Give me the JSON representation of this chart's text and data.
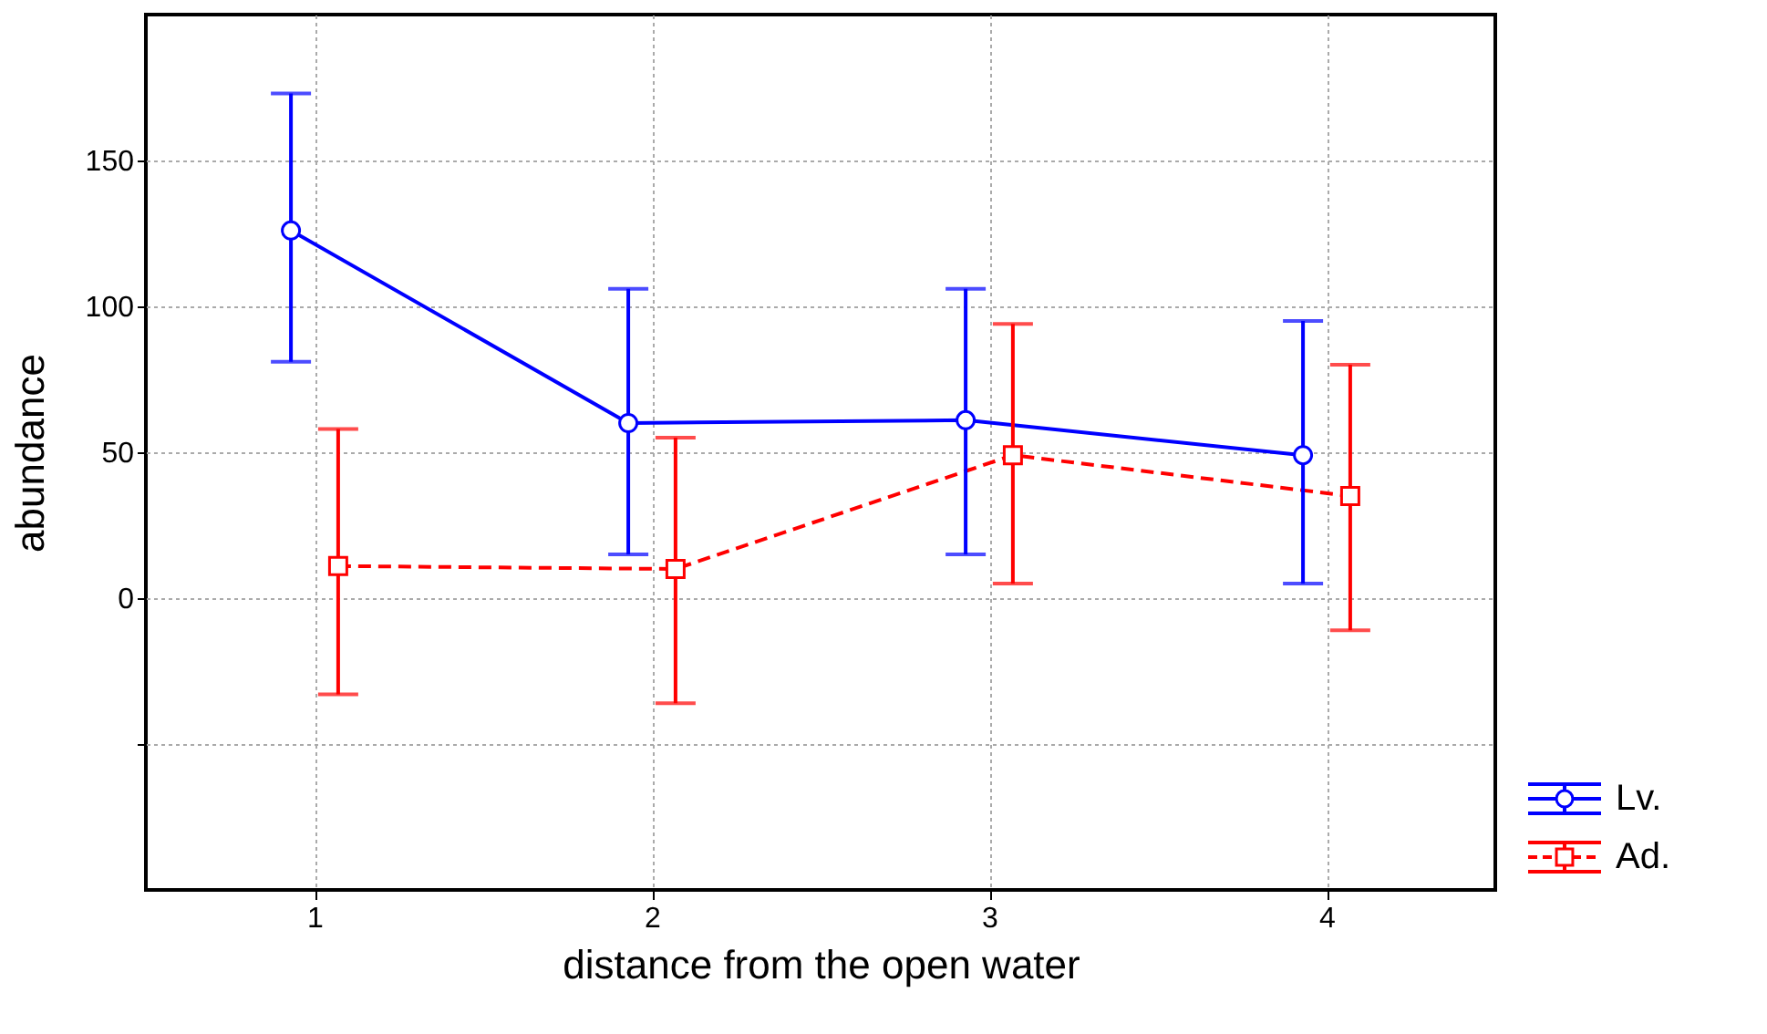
{
  "chart_data": {
    "type": "line",
    "xlabel": "distance from the open water",
    "ylabel": "abundance",
    "xlim": [
      0.5,
      4.5
    ],
    "xticks": [
      1,
      2,
      3,
      4
    ],
    "ylim": [
      -100,
      200
    ],
    "yticks": [
      {
        "value": -50,
        "label": null
      },
      0,
      50,
      100,
      150
    ],
    "grid": true,
    "legend": "bottom right",
    "series": [
      {
        "name": "Lv.",
        "color": "#0000ff",
        "marker": "circle",
        "line_style": "solid",
        "x": [
          0.93,
          1.93,
          2.93,
          3.93
        ],
        "values": [
          126,
          60,
          61,
          49
        ],
        "errors": [
          [
            81,
            173
          ],
          [
            15,
            106
          ],
          [
            15,
            106
          ],
          [
            5,
            95
          ]
        ]
      },
      {
        "name": "Ad.",
        "color": "#ff0000",
        "marker": "square",
        "line_style": "dashed",
        "x": [
          1.07,
          2.07,
          3.07,
          4.07
        ],
        "values": [
          11,
          10,
          49,
          35
        ],
        "errors": [
          [
            -33,
            58
          ],
          [
            -36,
            55
          ],
          [
            5,
            94
          ],
          [
            -11,
            80
          ]
        ]
      }
    ]
  }
}
